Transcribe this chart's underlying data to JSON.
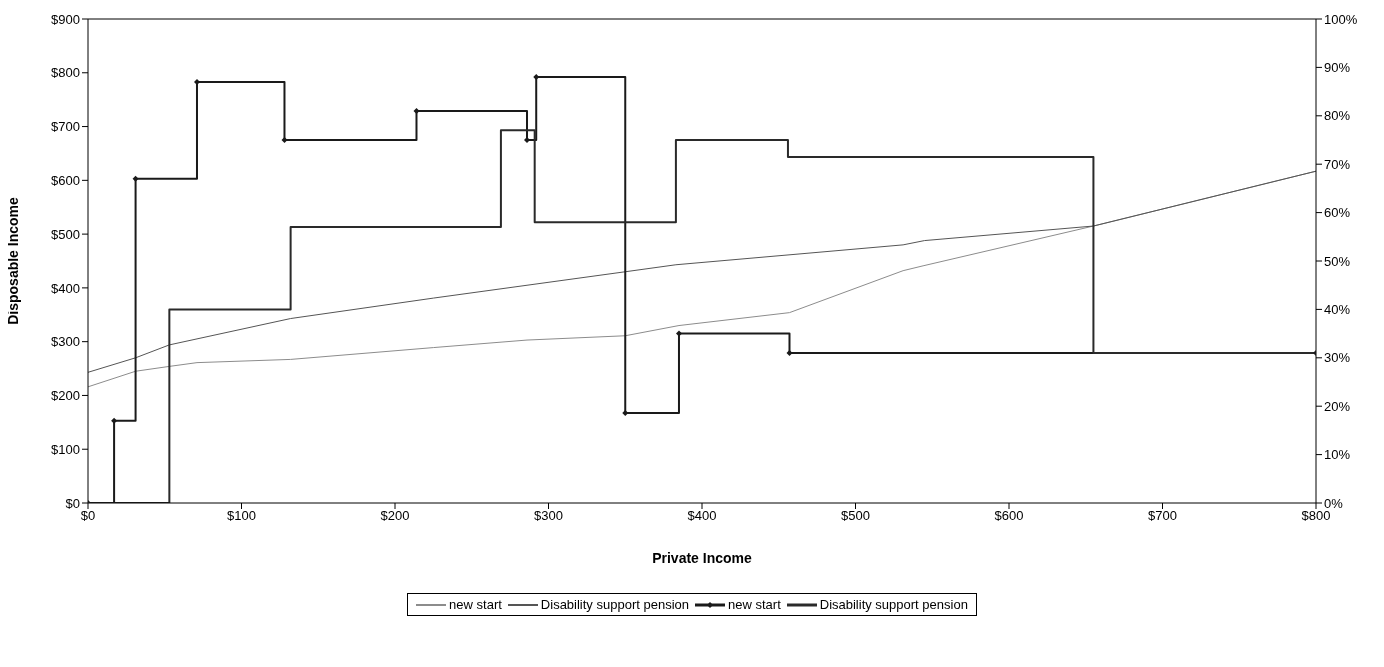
{
  "chart_data": {
    "type": "line",
    "xlabel": "Private Income",
    "ylabel": "Disposable Income",
    "xlim": [
      0,
      800
    ],
    "xticks": [
      {
        "value": 0,
        "label": "$0"
      },
      {
        "value": 100,
        "label": "$100"
      },
      {
        "value": 200,
        "label": "$200"
      },
      {
        "value": 300,
        "label": "$300"
      },
      {
        "value": 400,
        "label": "$400"
      },
      {
        "value": 500,
        "label": "$500"
      },
      {
        "value": 600,
        "label": "$600"
      },
      {
        "value": 700,
        "label": "$700"
      },
      {
        "value": 800,
        "label": "$800"
      }
    ],
    "ylim": [
      0,
      900
    ],
    "yticks": [
      {
        "value": 0,
        "label": "$0"
      },
      {
        "value": 100,
        "label": "$100"
      },
      {
        "value": 200,
        "label": "$200"
      },
      {
        "value": 300,
        "label": "$300"
      },
      {
        "value": 400,
        "label": "$400"
      },
      {
        "value": 500,
        "label": "$500"
      },
      {
        "value": 600,
        "label": "$600"
      },
      {
        "value": 700,
        "label": "$700"
      },
      {
        "value": 800,
        "label": "$800"
      },
      {
        "value": 900,
        "label": "$900"
      }
    ],
    "y2lim": [
      0,
      100
    ],
    "y2ticks": [
      {
        "value": 0,
        "label": "0%"
      },
      {
        "value": 10,
        "label": "10%"
      },
      {
        "value": 20,
        "label": "20%"
      },
      {
        "value": 30,
        "label": "30%"
      },
      {
        "value": 40,
        "label": "40%"
      },
      {
        "value": 50,
        "label": "50%"
      },
      {
        "value": 60,
        "label": "60%"
      },
      {
        "value": 70,
        "label": "70%"
      },
      {
        "value": 80,
        "label": "80%"
      },
      {
        "value": 90,
        "label": "90%"
      },
      {
        "value": 100,
        "label": "100%"
      }
    ],
    "grid": false,
    "legend": "bottom",
    "line_style": "solid",
    "series": [
      {
        "name": "new start",
        "type": "line",
        "color": "#8c8c8c",
        "marker": "none",
        "x": [
          0,
          31,
          53,
          71,
          132,
          225,
          286,
          350,
          385,
          457,
          531,
          544,
          655,
          800
        ],
        "values": [
          216,
          245,
          254,
          261,
          267,
          289,
          303,
          311,
          330,
          354,
          432,
          441,
          515,
          617
        ]
      },
      {
        "name": "Disability support pension",
        "type": "line",
        "color": "#555555",
        "marker": "none",
        "x": [
          0,
          31,
          53,
          132,
          225,
          350,
          383,
          531,
          545,
          655,
          800
        ],
        "values": [
          243,
          270,
          294,
          343,
          381,
          430,
          443,
          480,
          488,
          515,
          617
        ]
      },
      {
        "name": "new start",
        "type": "step",
        "axis": "y2",
        "color": "#1a1a1a",
        "marker": "diamond",
        "x": [
          0,
          17,
          31,
          71,
          128,
          214,
          286,
          292,
          350,
          385,
          457,
          800
        ],
        "values": [
          0,
          17,
          67,
          87,
          75,
          81,
          75,
          88,
          18.6,
          35,
          31,
          31
        ]
      },
      {
        "name": "Disability support pension",
        "type": "step",
        "axis": "y2",
        "color": "#2a2a2a",
        "marker": "none",
        "x": [
          0,
          53,
          132,
          269,
          291,
          383,
          456,
          655,
          800
        ],
        "values": [
          0,
          40,
          57,
          77,
          58,
          75,
          71.5,
          31,
          31
        ]
      }
    ]
  }
}
